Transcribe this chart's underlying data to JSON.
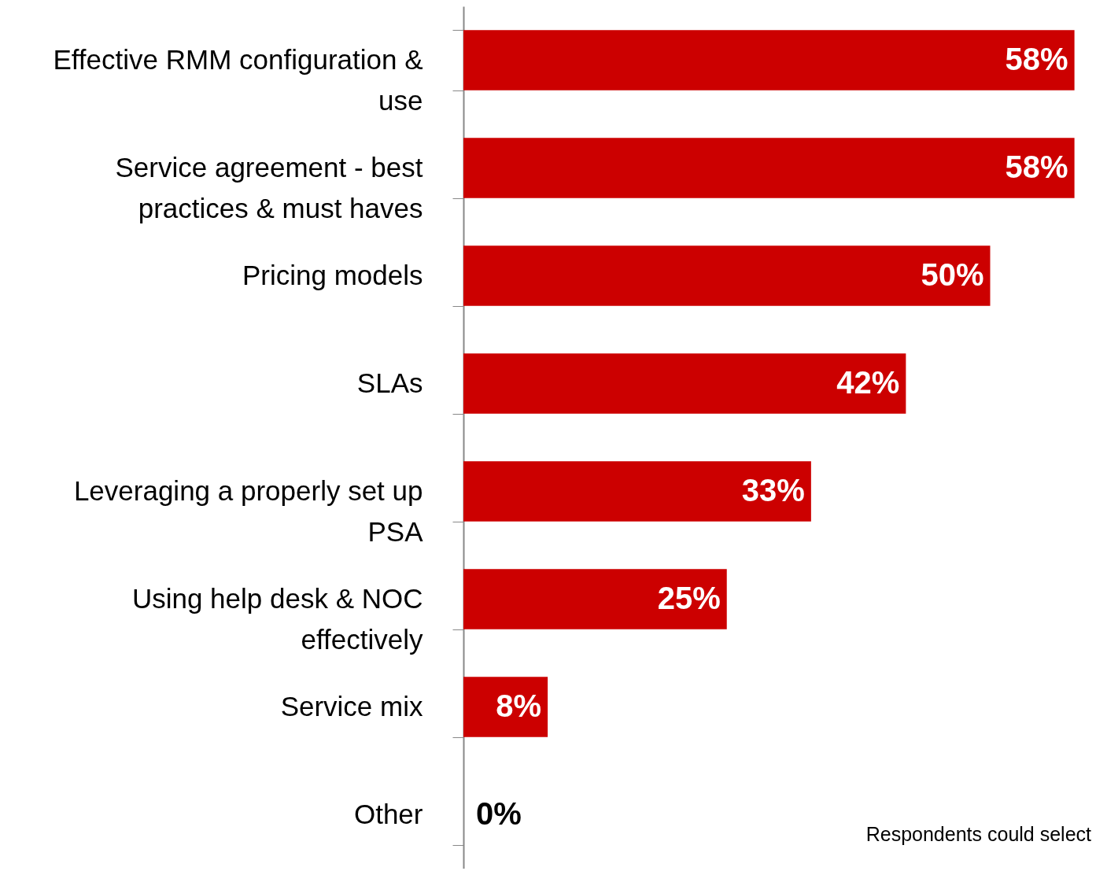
{
  "chart_data": {
    "type": "bar",
    "orientation": "horizontal",
    "categories": [
      "Effective RMM configuration & use",
      "Service agreement - best practices & must haves",
      "Pricing models",
      "SLAs",
      "Leveraging a properly set up PSA",
      "Using help desk & NOC effectively",
      "Service mix",
      "Other"
    ],
    "values": [
      58,
      58,
      50,
      42,
      33,
      25,
      8,
      0
    ],
    "value_labels": [
      "58%",
      "58%",
      "50%",
      "42%",
      "33%",
      "25%",
      "8%",
      "0%"
    ],
    "color": "#cc0000",
    "xlim": [
      0,
      59
    ],
    "tick_labels": "y",
    "annotations": [
      "Respondents could select"
    ]
  }
}
